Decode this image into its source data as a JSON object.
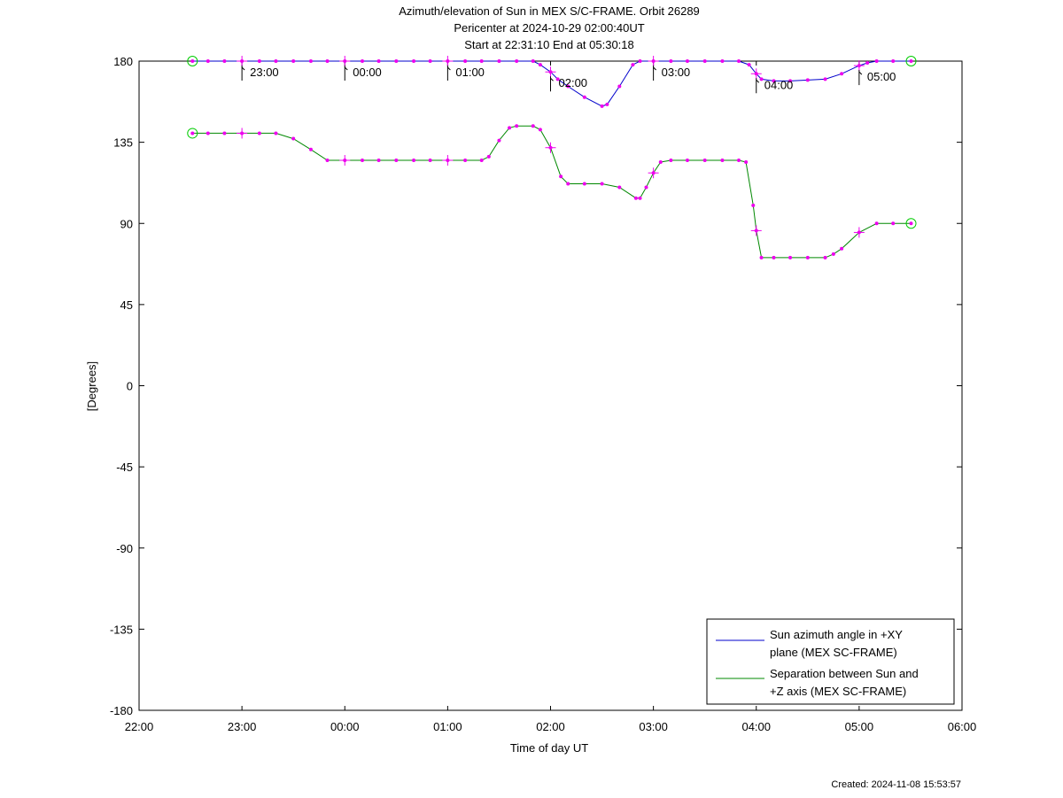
{
  "chart_data": {
    "type": "line",
    "title_lines": [
      "Azimuth/elevation of Sun in MEX S/C-FRAME.  Orbit 26289",
      "Pericenter at 2024-10-29 02:00:40UT",
      "Start at 22:31:10 End at 05:30:18"
    ],
    "xlabel": "Time of day UT",
    "ylabel": "[Degrees]",
    "xlim": [
      "22:00",
      "06:00"
    ],
    "x_range_hours": [
      22.0,
      30.0
    ],
    "ylim": [
      -180,
      180
    ],
    "x_ticks": [
      {
        "t": 22,
        "label": "22:00"
      },
      {
        "t": 23,
        "label": "23:00"
      },
      {
        "t": 24,
        "label": "00:00"
      },
      {
        "t": 25,
        "label": "01:00"
      },
      {
        "t": 26,
        "label": "02:00"
      },
      {
        "t": 27,
        "label": "03:00"
      },
      {
        "t": 28,
        "label": "04:00"
      },
      {
        "t": 29,
        "label": "05:00"
      },
      {
        "t": 30,
        "label": "06:00"
      }
    ],
    "y_ticks": [
      {
        "v": 180,
        "label": "180"
      },
      {
        "v": 135,
        "label": "135"
      },
      {
        "v": 90,
        "label": "90"
      },
      {
        "v": 45,
        "label": "45"
      },
      {
        "v": 0,
        "label": "0"
      },
      {
        "v": -45,
        "label": "-45"
      },
      {
        "v": -90,
        "label": "-90"
      },
      {
        "v": -135,
        "label": "-135"
      },
      {
        "v": -180,
        "label": "-180"
      }
    ],
    "hour_markers": [
      {
        "t": 23,
        "label": "23:00"
      },
      {
        "t": 24,
        "label": "00:00"
      },
      {
        "t": 25,
        "label": "01:00"
      },
      {
        "t": 26,
        "label": "02:00"
      },
      {
        "t": 27,
        "label": "03:00"
      },
      {
        "t": 28,
        "label": "04:00"
      },
      {
        "t": 29,
        "label": "05:00"
      }
    ],
    "series": [
      {
        "name": "Sun azimuth angle in +XY plane (MEX SC-FRAME)",
        "legend_lines": [
          "Sun azimuth angle in +XY",
          "plane (MEX SC-FRAME)"
        ],
        "color": "#0000cc",
        "points": [
          [
            22.519,
            180
          ],
          [
            22.67,
            180
          ],
          [
            22.83,
            180
          ],
          [
            23.0,
            180
          ],
          [
            23.17,
            180
          ],
          [
            23.33,
            180
          ],
          [
            23.5,
            180
          ],
          [
            23.67,
            180
          ],
          [
            23.83,
            180
          ],
          [
            24.0,
            180
          ],
          [
            24.17,
            180
          ],
          [
            24.33,
            180
          ],
          [
            24.5,
            180
          ],
          [
            24.67,
            180
          ],
          [
            24.83,
            180
          ],
          [
            25.0,
            180
          ],
          [
            25.17,
            180
          ],
          [
            25.33,
            180
          ],
          [
            25.5,
            180
          ],
          [
            25.67,
            180
          ],
          [
            25.83,
            180
          ],
          [
            25.9,
            178
          ],
          [
            26.0,
            174
          ],
          [
            26.07,
            170
          ],
          [
            26.17,
            166
          ],
          [
            26.33,
            160
          ],
          [
            26.5,
            155
          ],
          [
            26.55,
            156
          ],
          [
            26.67,
            166
          ],
          [
            26.8,
            178
          ],
          [
            26.87,
            180
          ],
          [
            27.0,
            180
          ],
          [
            27.17,
            180
          ],
          [
            27.33,
            180
          ],
          [
            27.5,
            180
          ],
          [
            27.67,
            180
          ],
          [
            27.83,
            180
          ],
          [
            27.93,
            178
          ],
          [
            28.0,
            173
          ],
          [
            28.05,
            170
          ],
          [
            28.17,
            169
          ],
          [
            28.33,
            169
          ],
          [
            28.5,
            169.5
          ],
          [
            28.67,
            170
          ],
          [
            28.83,
            173
          ],
          [
            29.0,
            177.5
          ],
          [
            29.08,
            179
          ],
          [
            29.17,
            180
          ],
          [
            29.33,
            180
          ],
          [
            29.505,
            180
          ]
        ]
      },
      {
        "name": "Separation between Sun and +Z axis (MEX SC-FRAME)",
        "legend_lines": [
          "Separation between Sun and",
          "+Z axis (MEX SC-FRAME)"
        ],
        "color": "#008800",
        "points": [
          [
            22.519,
            140
          ],
          [
            22.67,
            140
          ],
          [
            22.83,
            140
          ],
          [
            23.0,
            140
          ],
          [
            23.17,
            140
          ],
          [
            23.33,
            140
          ],
          [
            23.5,
            137
          ],
          [
            23.67,
            131
          ],
          [
            23.83,
            125
          ],
          [
            24.0,
            125
          ],
          [
            24.17,
            125
          ],
          [
            24.33,
            125
          ],
          [
            24.5,
            125
          ],
          [
            24.67,
            125
          ],
          [
            24.83,
            125
          ],
          [
            25.0,
            125
          ],
          [
            25.17,
            125
          ],
          [
            25.33,
            125
          ],
          [
            25.4,
            127
          ],
          [
            25.5,
            136
          ],
          [
            25.6,
            143
          ],
          [
            25.67,
            144
          ],
          [
            25.83,
            144
          ],
          [
            25.9,
            142
          ],
          [
            26.0,
            132
          ],
          [
            26.1,
            116
          ],
          [
            26.17,
            112
          ],
          [
            26.33,
            112
          ],
          [
            26.5,
            112
          ],
          [
            26.67,
            110
          ],
          [
            26.83,
            104
          ],
          [
            26.87,
            104
          ],
          [
            26.93,
            110
          ],
          [
            27.0,
            118
          ],
          [
            27.07,
            124
          ],
          [
            27.17,
            125
          ],
          [
            27.33,
            125
          ],
          [
            27.5,
            125
          ],
          [
            27.67,
            125
          ],
          [
            27.83,
            125
          ],
          [
            27.9,
            124
          ],
          [
            27.97,
            100
          ],
          [
            28.0,
            86
          ],
          [
            28.05,
            71
          ],
          [
            28.17,
            71
          ],
          [
            28.33,
            71
          ],
          [
            28.5,
            71
          ],
          [
            28.67,
            71
          ],
          [
            28.75,
            73
          ],
          [
            28.83,
            76
          ],
          [
            29.0,
            85
          ],
          [
            29.17,
            90
          ],
          [
            29.33,
            90
          ],
          [
            29.505,
            90
          ]
        ]
      }
    ],
    "point_marker_color": "#ee00ee",
    "endpoint_marker_color": "#00cc00",
    "grid": false,
    "legend_position": "bottom-right"
  },
  "footer": {
    "created": "Created: 2024-11-08 15:53:57"
  }
}
